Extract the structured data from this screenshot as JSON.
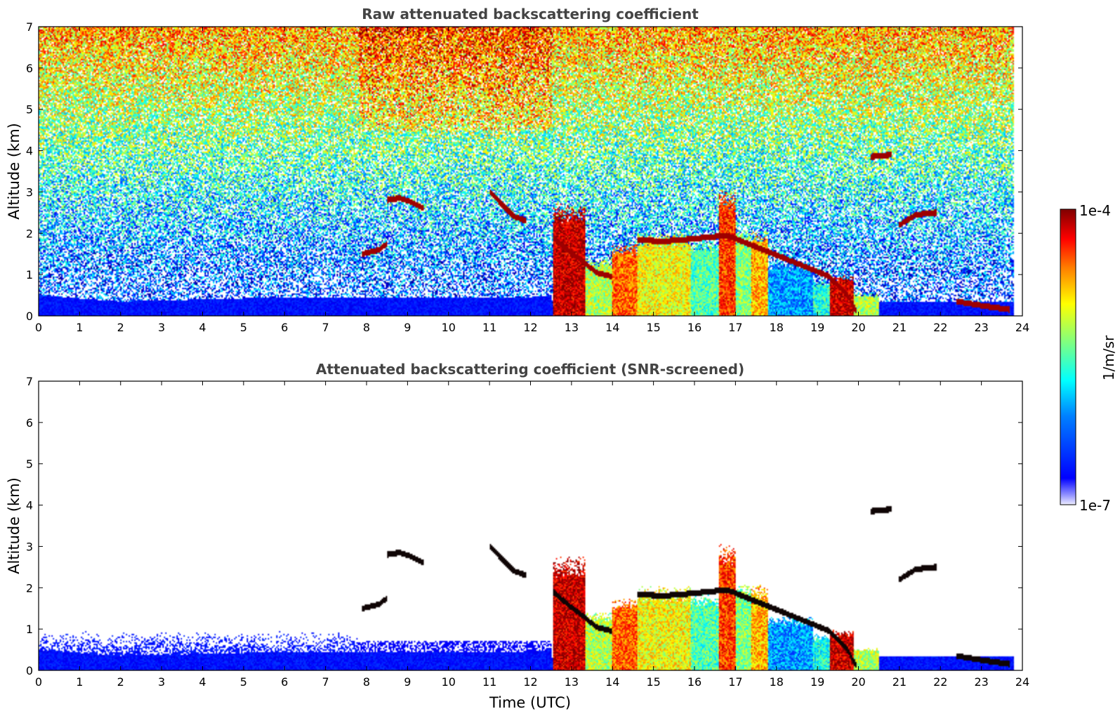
{
  "chart_data": [
    {
      "type": "heatmap",
      "title": "Raw attenuated backscattering coefficient",
      "xlabel": "",
      "ylabel": "Altitude (km)",
      "xlim": [
        0,
        24
      ],
      "ylim": [
        0,
        7
      ],
      "xticks": [
        "0",
        "1",
        "2",
        "3",
        "4",
        "5",
        "6",
        "7",
        "8",
        "9",
        "10",
        "11",
        "12",
        "13",
        "14",
        "15",
        "16",
        "17",
        "18",
        "19",
        "20",
        "21",
        "22",
        "23",
        "24"
      ],
      "yticks": [
        "0",
        "1",
        "2",
        "3",
        "4",
        "5",
        "6",
        "7"
      ],
      "screened": false,
      "features": {
        "boundary_layer": [
          [
            0,
            0.5
          ],
          [
            2,
            0.35
          ],
          [
            4,
            0.4
          ],
          [
            6,
            0.45
          ],
          [
            8,
            0.45
          ],
          [
            10,
            0.45
          ],
          [
            12,
            0.45
          ],
          [
            12.5,
            0.5
          ]
        ],
        "aerosol_columns": [
          {
            "x0": 12.55,
            "x1": 13.35,
            "top": 2.5,
            "level": 0.93
          },
          {
            "x0": 13.35,
            "x1": 14.0,
            "top": 1.3,
            "level": 0.55
          },
          {
            "x0": 14.0,
            "x1": 14.6,
            "top": 1.6,
            "level": 0.78
          },
          {
            "x0": 14.6,
            "x1": 15.9,
            "top": 1.85,
            "level": 0.62
          },
          {
            "x0": 15.9,
            "x1": 16.6,
            "top": 1.7,
            "level": 0.45
          },
          {
            "x0": 16.6,
            "x1": 17.0,
            "top": 2.8,
            "level": 0.82
          },
          {
            "x0": 17.0,
            "x1": 17.4,
            "top": 1.9,
            "level": 0.5
          },
          {
            "x0": 17.4,
            "x1": 17.8,
            "top": 1.9,
            "level": 0.7
          },
          {
            "x0": 17.8,
            "x1": 18.9,
            "top": 1.2,
            "level": 0.28
          },
          {
            "x0": 18.9,
            "x1": 19.3,
            "top": 0.8,
            "level": 0.4
          },
          {
            "x0": 19.3,
            "x1": 19.9,
            "top": 0.9,
            "level": 0.92
          },
          {
            "x0": 19.9,
            "x1": 20.5,
            "top": 0.5,
            "level": 0.55
          }
        ],
        "cloud_layers": [
          [
            [
              7.9,
              1.5
            ],
            [
              8.1,
              1.55
            ],
            [
              8.3,
              1.6
            ],
            [
              8.5,
              1.75
            ]
          ],
          [
            [
              8.5,
              2.8
            ],
            [
              8.8,
              2.85
            ],
            [
              9.1,
              2.75
            ],
            [
              9.4,
              2.6
            ]
          ],
          [
            [
              11.0,
              3.0
            ],
            [
              11.3,
              2.7
            ],
            [
              11.6,
              2.4
            ],
            [
              11.9,
              2.3
            ]
          ],
          [
            [
              12.55,
              1.9
            ],
            [
              12.9,
              1.6
            ],
            [
              13.3,
              1.3
            ],
            [
              13.6,
              1.05
            ],
            [
              14.0,
              0.95
            ]
          ],
          [
            [
              14.6,
              1.85
            ],
            [
              15.2,
              1.8
            ],
            [
              15.8,
              1.85
            ],
            [
              16.3,
              1.9
            ],
            [
              16.8,
              1.95
            ],
            [
              17.3,
              1.75
            ],
            [
              17.8,
              1.55
            ],
            [
              18.3,
              1.35
            ],
            [
              18.8,
              1.15
            ],
            [
              19.3,
              0.95
            ],
            [
              19.7,
              0.55
            ],
            [
              19.95,
              0.1
            ]
          ],
          [
            [
              20.3,
              3.85
            ],
            [
              20.8,
              3.9
            ]
          ],
          [
            [
              21.0,
              2.2
            ],
            [
              21.4,
              2.45
            ],
            [
              21.9,
              2.5
            ]
          ],
          [
            [
              22.4,
              0.35
            ],
            [
              23.0,
              0.25
            ],
            [
              23.7,
              0.15
            ]
          ]
        ]
      }
    },
    {
      "type": "heatmap",
      "title": "Attenuated backscattering coefficient (SNR-screened)",
      "xlabel": "Time (UTC)",
      "ylabel": "Altitude (km)",
      "xlim": [
        0,
        24
      ],
      "ylim": [
        0,
        7
      ],
      "xticks": [
        "0",
        "1",
        "2",
        "3",
        "4",
        "5",
        "6",
        "7",
        "8",
        "9",
        "10",
        "11",
        "12",
        "13",
        "14",
        "15",
        "16",
        "17",
        "18",
        "19",
        "20",
        "21",
        "22",
        "23",
        "24"
      ],
      "yticks": [
        "0",
        "1",
        "2",
        "3",
        "4",
        "5",
        "6",
        "7"
      ],
      "screened": true
    }
  ],
  "colorbar": {
    "label": "1/m/sr",
    "max_label": "1e-4",
    "min_label": "1e-7",
    "scale": "log",
    "colormap": "jet",
    "range": [
      1e-07,
      0.0001
    ]
  },
  "colors": {
    "title": "#444444",
    "jet": [
      "#00007f",
      "#0000ff",
      "#007fff",
      "#00ffff",
      "#7fff7f",
      "#ffff00",
      "#ff7f00",
      "#ff0000",
      "#7f0000"
    ]
  }
}
